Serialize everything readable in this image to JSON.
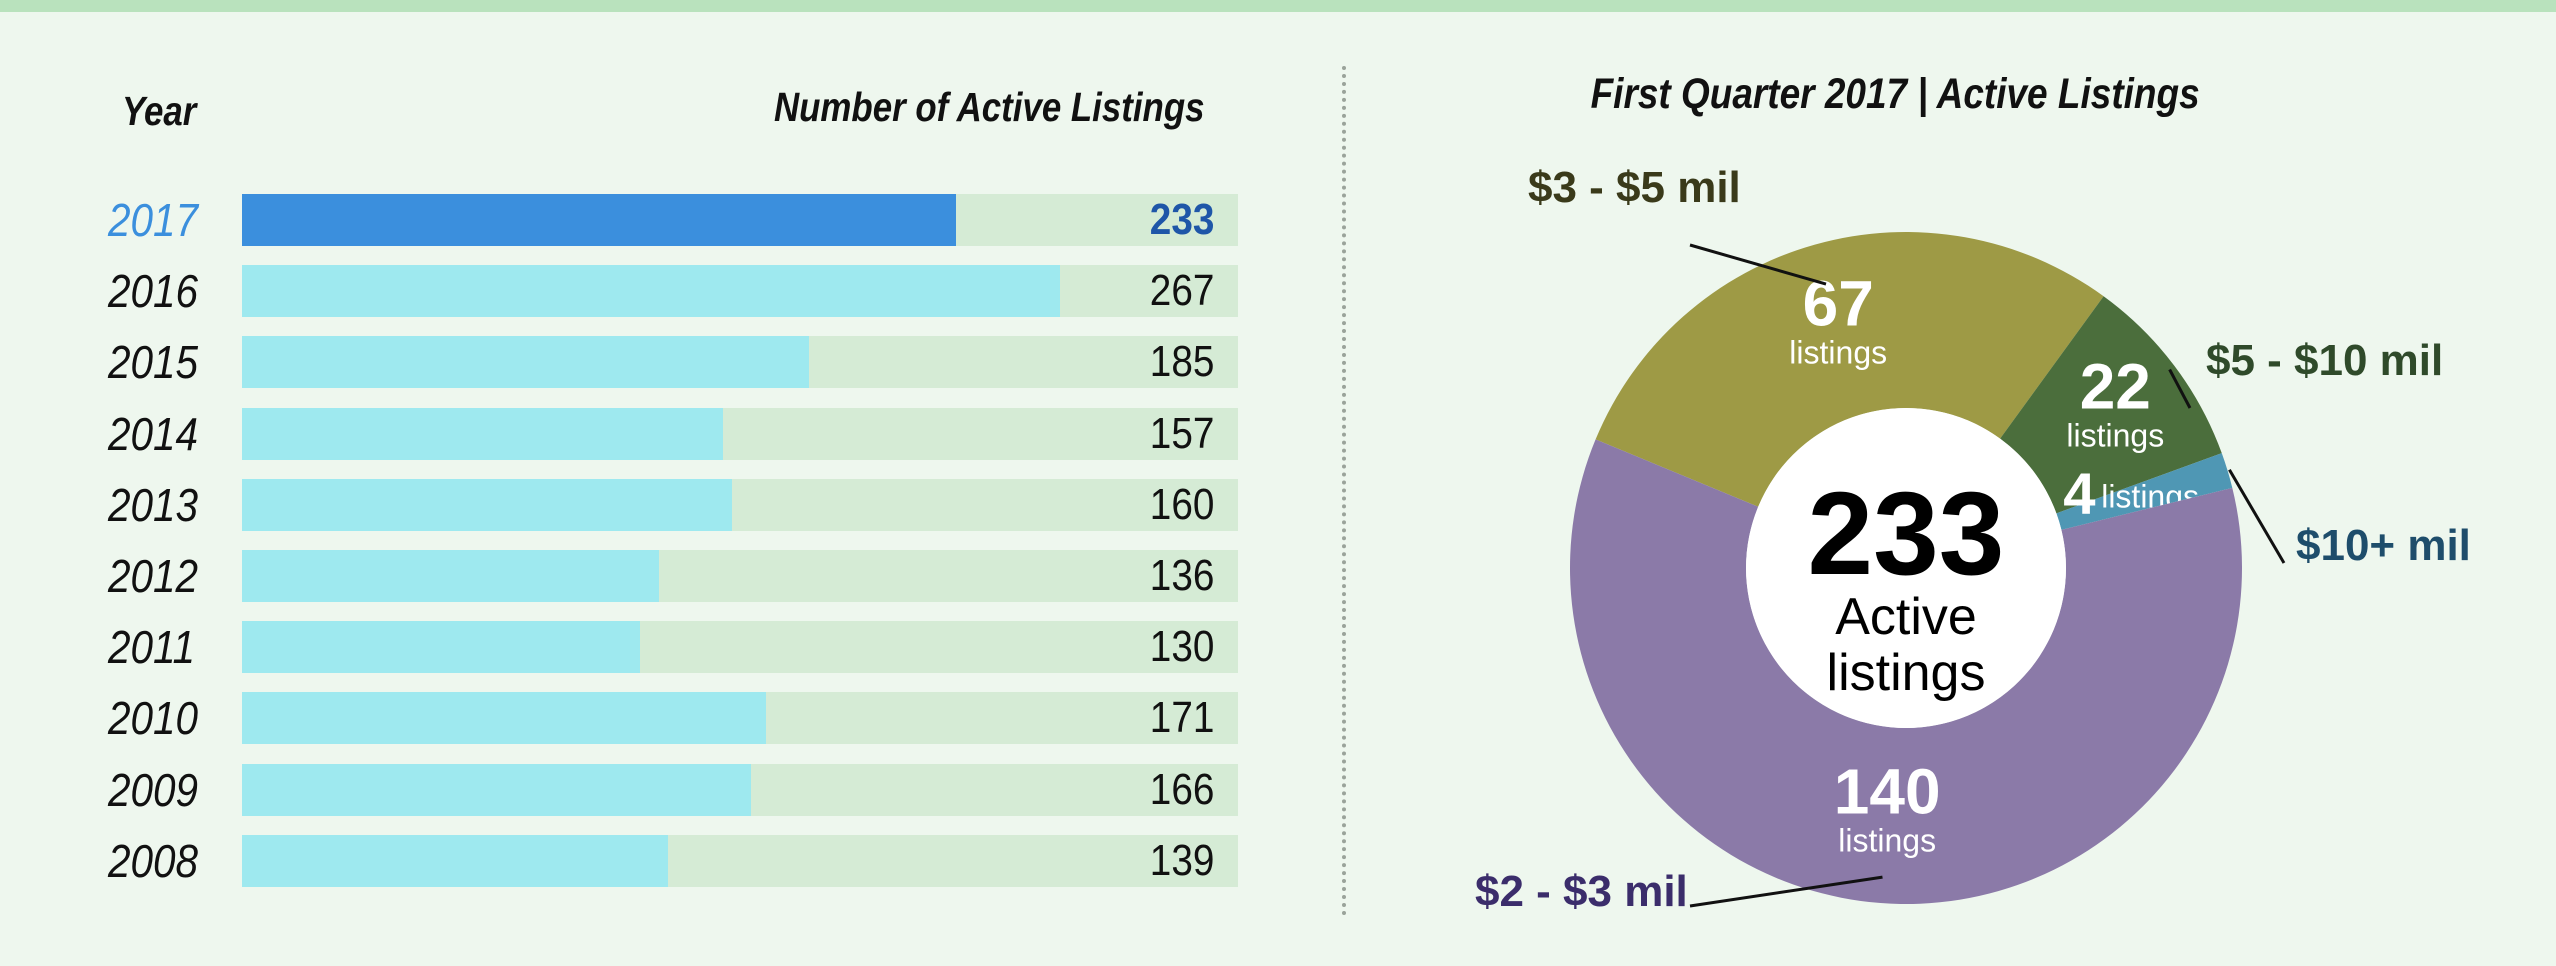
{
  "bar_panel": {
    "year_header": "Year",
    "value_header": "Number of Active Listings",
    "highlight_year": "2017",
    "colors": {
      "highlight": "#3b8fdd",
      "bar": "#9ee9ef",
      "track": "#d5ebd5",
      "highlight_value": "#1e56a8"
    }
  },
  "donut_panel": {
    "title": "First Quarter 2017 | Active Listings",
    "center_value": "233",
    "center_label_line1": "Active",
    "center_label_line2": "listings",
    "slice_unit": "listings",
    "slices": [
      {
        "label": "$3 - $5 mil",
        "value": 67,
        "color": "#9e9a45",
        "label_color": "#3a3a1a"
      },
      {
        "label": "$5 - $10 mil",
        "value": 22,
        "color": "#4b6e3c",
        "label_color": "#2f4a2a"
      },
      {
        "label": "$10+ mil",
        "value": 4,
        "color": "#4f97b4",
        "label_color": "#1e4d6b"
      },
      {
        "label": "$2 - $3 mil",
        "value": 140,
        "color": "#8b7aa8",
        "label_color": "#3b2d6b"
      }
    ]
  },
  "chart_data": [
    {
      "type": "bar",
      "orientation": "horizontal",
      "categories": [
        "2017",
        "2016",
        "2015",
        "2014",
        "2013",
        "2012",
        "2011",
        "2010",
        "2009",
        "2008"
      ],
      "values": [
        233,
        267,
        185,
        157,
        160,
        136,
        130,
        171,
        166,
        139
      ],
      "xlabel": "Number of Active Listings",
      "ylabel": "Year",
      "xlim": [
        0,
        325
      ],
      "grid": false
    },
    {
      "type": "pie",
      "donut": true,
      "title": "First Quarter 2017 | Active Listings",
      "categories": [
        "$3 - $5 mil",
        "$5 - $10 mil",
        "$10+ mil",
        "$2 - $3 mil"
      ],
      "values": [
        67,
        22,
        4,
        140
      ],
      "total": 233
    }
  ]
}
